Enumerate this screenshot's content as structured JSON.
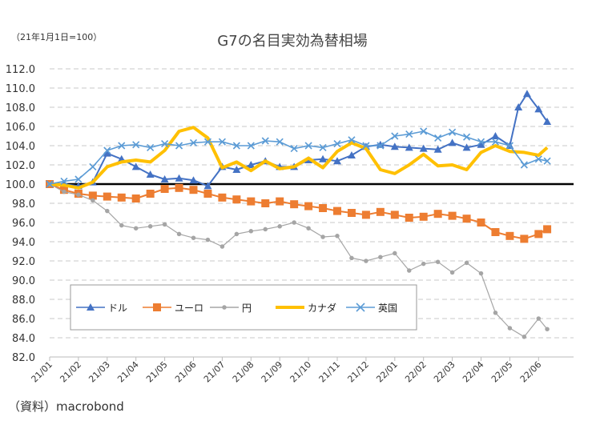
{
  "chart_data": {
    "type": "line",
    "title": "G7の名目実効為替相場",
    "base_note": "（21年1月1日=100）",
    "source": "（資料）macrobond",
    "ylim": [
      82.0,
      112.0
    ],
    "yticks": [
      "82.0",
      "84.0",
      "86.0",
      "88.0",
      "90.0",
      "92.0",
      "94.0",
      "96.0",
      "98.0",
      "100.0",
      "102.0",
      "104.0",
      "106.0",
      "108.0",
      "110.0",
      "112.0"
    ],
    "x_labels": [
      "21/01",
      "21/02",
      "21/03",
      "21/04",
      "21/05",
      "21/06",
      "21/07",
      "21/08",
      "21/09",
      "21/10",
      "21/11",
      "21/12",
      "22/01",
      "22/02",
      "22/03",
      "22/04",
      "22/05",
      "22/06"
    ],
    "reference_line": 100.0,
    "grid": "horizontal dashed",
    "legend_position": "lower-left inside",
    "series": [
      {
        "name": "ドル",
        "color": "#4472C4",
        "marker": "triangle",
        "x": [
          0,
          0.5,
          1,
          1.5,
          2,
          2.5,
          3,
          3.5,
          4,
          4.5,
          5,
          5.5,
          6,
          6.5,
          7,
          7.5,
          8,
          8.5,
          9,
          9.5,
          10,
          10.5,
          11,
          11.5,
          12,
          12.5,
          13,
          13.5,
          14,
          14.5,
          15,
          15.5,
          16,
          16.3,
          16.6,
          17,
          17.3
        ],
        "y": [
          100.0,
          100.0,
          99.8,
          100.2,
          103.2,
          102.6,
          101.8,
          101.0,
          100.5,
          100.6,
          100.4,
          99.8,
          101.8,
          101.5,
          102.0,
          102.4,
          101.8,
          101.8,
          102.5,
          102.6,
          102.4,
          103.0,
          103.9,
          104.1,
          103.9,
          103.8,
          103.7,
          103.6,
          104.3,
          103.8,
          104.1,
          105.0,
          104.0,
          108.0,
          109.4,
          107.8,
          106.5
        ]
      },
      {
        "name": "ユーロ",
        "color": "#ED7D31",
        "marker": "square",
        "x": [
          0,
          0.5,
          1,
          1.5,
          2,
          2.5,
          3,
          3.5,
          4,
          4.5,
          5,
          5.5,
          6,
          6.5,
          7,
          7.5,
          8,
          8.5,
          9,
          9.5,
          10,
          10.5,
          11,
          11.5,
          12,
          12.5,
          13,
          13.5,
          14,
          14.5,
          15,
          15.5,
          16,
          16.5,
          17,
          17.3
        ],
        "y": [
          100.0,
          99.4,
          99.0,
          98.8,
          98.7,
          98.6,
          98.5,
          99.0,
          99.5,
          99.6,
          99.4,
          99.0,
          98.6,
          98.4,
          98.2,
          98.0,
          98.2,
          97.9,
          97.7,
          97.5,
          97.2,
          97.0,
          96.8,
          97.1,
          96.8,
          96.5,
          96.6,
          96.9,
          96.7,
          96.4,
          96.0,
          95.0,
          94.6,
          94.3,
          94.8,
          95.3
        ]
      },
      {
        "name": "円",
        "color": "#A5A5A5",
        "marker": "circle",
        "x": [
          0,
          0.5,
          1,
          1.5,
          2,
          2.5,
          3,
          3.5,
          4,
          4.5,
          5,
          5.5,
          6,
          6.5,
          7,
          7.5,
          8,
          8.5,
          9,
          9.5,
          10,
          10.5,
          11,
          11.5,
          12,
          12.5,
          13,
          13.5,
          14,
          14.5,
          15,
          15.5,
          16,
          16.5,
          17,
          17.3
        ],
        "y": [
          100.0,
          99.2,
          98.9,
          98.3,
          97.2,
          95.7,
          95.4,
          95.6,
          95.8,
          94.8,
          94.4,
          94.2,
          93.5,
          94.8,
          95.1,
          95.3,
          95.6,
          96.0,
          95.4,
          94.5,
          94.6,
          92.3,
          92.0,
          92.4,
          92.8,
          91.0,
          91.7,
          91.9,
          90.8,
          91.8,
          90.7,
          86.6,
          85.0,
          84.1,
          86.0,
          84.9
        ]
      },
      {
        "name": "カナダ",
        "color": "#FFC000",
        "marker": "none",
        "x": [
          0,
          0.5,
          1,
          1.5,
          2,
          2.5,
          3,
          3.5,
          4,
          4.5,
          5,
          5.5,
          6,
          6.5,
          7,
          7.5,
          8,
          8.5,
          9,
          9.5,
          10,
          10.5,
          11,
          11.5,
          12,
          12.5,
          13,
          13.5,
          14,
          14.5,
          15,
          15.5,
          16,
          16.5,
          17,
          17.3
        ],
        "y": [
          100.0,
          99.9,
          99.6,
          100.2,
          101.8,
          102.3,
          102.5,
          102.3,
          103.5,
          105.5,
          105.9,
          104.8,
          101.7,
          102.3,
          101.4,
          102.4,
          101.6,
          101.8,
          102.7,
          101.7,
          103.4,
          104.3,
          103.7,
          101.5,
          101.1,
          102.0,
          103.1,
          101.9,
          102.0,
          101.5,
          103.3,
          104.0,
          103.4,
          103.3,
          103.0,
          103.8
        ]
      },
      {
        "name": "英国",
        "color": "#5B9BD5",
        "marker": "cross",
        "x": [
          0,
          0.5,
          1,
          1.5,
          2,
          2.5,
          3,
          3.5,
          4,
          4.5,
          5,
          5.5,
          6,
          6.5,
          7,
          7.5,
          8,
          8.5,
          9,
          9.5,
          10,
          10.5,
          11,
          11.5,
          12,
          12.5,
          13,
          13.5,
          14,
          14.5,
          15,
          15.5,
          16,
          16.5,
          17,
          17.3
        ],
        "y": [
          100.0,
          100.3,
          100.5,
          101.8,
          103.5,
          104.0,
          104.1,
          103.8,
          104.2,
          104.0,
          104.3,
          104.4,
          104.4,
          104.0,
          104.0,
          104.5,
          104.4,
          103.7,
          104.0,
          103.8,
          104.2,
          104.6,
          104.0,
          104.0,
          105.0,
          105.2,
          105.5,
          104.8,
          105.4,
          104.9,
          104.4,
          104.4,
          104.0,
          102.0,
          102.6,
          102.4
        ]
      }
    ]
  }
}
